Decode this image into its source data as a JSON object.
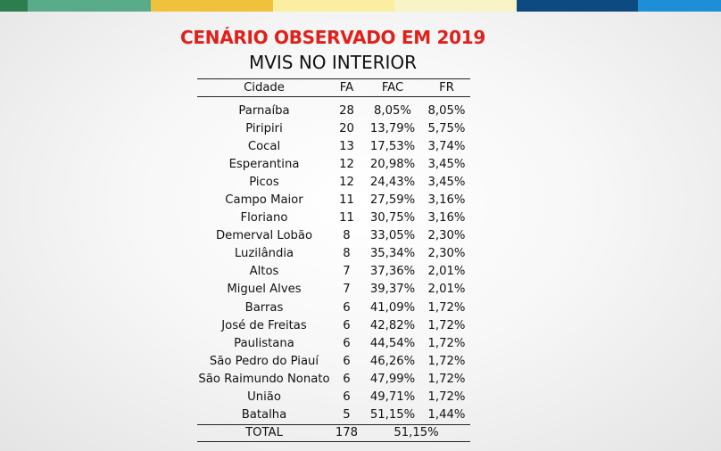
{
  "colors": {
    "topbar": [
      "#2e7d4f",
      "#5aab8a",
      "#f0c23c",
      "#fbeea0",
      "#f7f5c8",
      "#0d4a80",
      "#1e8fd6"
    ],
    "title": "#e0201b"
  },
  "header": {
    "title": "CENÁRIO OBSERVADO EM 2019",
    "subtitle": "MVIS NO INTERIOR"
  },
  "table": {
    "columns": [
      "Cidade",
      "FA",
      "FAC",
      "FR"
    ],
    "rows": [
      {
        "city": "Parnaíba",
        "fa": "28",
        "fac": "8,05%",
        "fr": "8,05%"
      },
      {
        "city": "Piripiri",
        "fa": "20",
        "fac": "13,79%",
        "fr": "5,75%"
      },
      {
        "city": "Cocal",
        "fa": "13",
        "fac": "17,53%",
        "fr": "3,74%"
      },
      {
        "city": "Esperantina",
        "fa": "12",
        "fac": "20,98%",
        "fr": "3,45%"
      },
      {
        "city": "Picos",
        "fa": "12",
        "fac": "24,43%",
        "fr": "3,45%"
      },
      {
        "city": "Campo Maior",
        "fa": "11",
        "fac": "27,59%",
        "fr": "3,16%"
      },
      {
        "city": "Floriano",
        "fa": "11",
        "fac": "30,75%",
        "fr": "3,16%"
      },
      {
        "city": "Demerval Lobão",
        "fa": "8",
        "fac": "33,05%",
        "fr": "2,30%"
      },
      {
        "city": "Luzilândia",
        "fa": "8",
        "fac": "35,34%",
        "fr": "2,30%"
      },
      {
        "city": "Altos",
        "fa": "7",
        "fac": "37,36%",
        "fr": "2,01%"
      },
      {
        "city": "Miguel Alves",
        "fa": "7",
        "fac": "39,37%",
        "fr": "2,01%"
      },
      {
        "city": "Barras",
        "fa": "6",
        "fac": "41,09%",
        "fr": "1,72%"
      },
      {
        "city": "José de Freitas",
        "fa": "6",
        "fac": "42,82%",
        "fr": "1,72%"
      },
      {
        "city": "Paulistana",
        "fa": "6",
        "fac": "44,54%",
        "fr": "1,72%"
      },
      {
        "city": "São Pedro do Piauí",
        "fa": "6",
        "fac": "46,26%",
        "fr": "1,72%"
      },
      {
        "city": "São Raimundo Nonato",
        "fa": "6",
        "fac": "47,99%",
        "fr": "1,72%"
      },
      {
        "city": "União",
        "fa": "6",
        "fac": "49,71%",
        "fr": "1,72%"
      },
      {
        "city": "Batalha",
        "fa": "5",
        "fac": "51,15%",
        "fr": "1,44%"
      }
    ],
    "total": {
      "label": "TOTAL",
      "fa": "178",
      "fac": "51,15%"
    }
  }
}
